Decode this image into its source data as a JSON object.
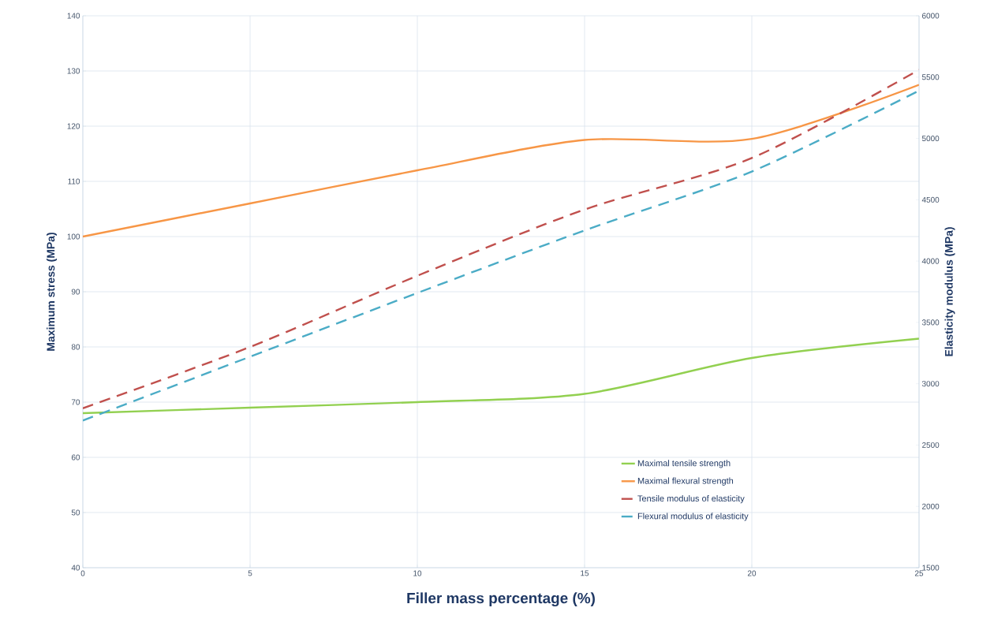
{
  "chart_data": {
    "type": "line",
    "xlabel": "Filler mass percentage (%)",
    "ylabel": "Maximum stress (MPa)",
    "y2label": "Elasticity modulus (MPa)",
    "x": [
      0,
      5,
      10,
      15,
      20,
      25
    ],
    "series": [
      {
        "name": "Maximal tensile strength",
        "color": "#92d050",
        "values": [
          68,
          69,
          70,
          71.5,
          78,
          81.5
        ]
      },
      {
        "name": "Maximal flexural strength",
        "color": "#f79646",
        "values": [
          100,
          106,
          112,
          117.5,
          117.7,
          127.5
        ]
      },
      {
        "name": "Tensile modulus of elasticity",
        "color": "#c0504d",
        "axis": "y2",
        "line_style": "dashed",
        "values": [
          2800,
          3300,
          3880,
          4420,
          4840,
          5560
        ]
      },
      {
        "name": "Flexural modulus of elasticity",
        "color": "#4bacc6",
        "axis": "y2",
        "line_style": "dashed",
        "values": [
          2700,
          3220,
          3740,
          4250,
          4730,
          5390
        ]
      }
    ],
    "xlim": [
      0,
      25
    ],
    "xticks": [
      0,
      5,
      10,
      15,
      20,
      25
    ],
    "ylim": [
      40,
      140
    ],
    "yticks": [
      40,
      50,
      60,
      70,
      80,
      90,
      100,
      110,
      120,
      130,
      140
    ],
    "y2lim": [
      1500,
      6000
    ],
    "y2ticks": [
      1500,
      2000,
      2500,
      3000,
      3500,
      4000,
      4500,
      5000,
      5500,
      6000
    ],
    "grid": true,
    "legend": "bottom right",
    "marker": "none",
    "line_style": "solid"
  }
}
